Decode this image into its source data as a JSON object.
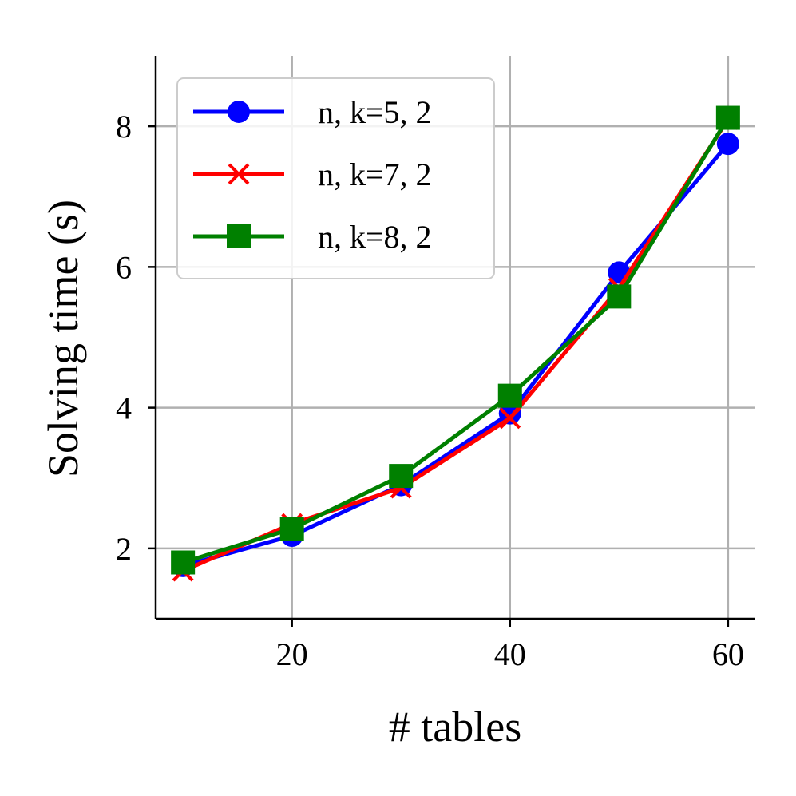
{
  "chart_data": {
    "type": "line",
    "title": "",
    "xlabel": "# tables",
    "ylabel": "Solving time (s)",
    "xlim": [
      7.5,
      62.5
    ],
    "ylim": [
      1.0,
      9.0
    ],
    "xticks": [
      20,
      40,
      60
    ],
    "yticks": [
      2,
      4,
      6,
      8
    ],
    "grid": true,
    "legend_position": "top-left",
    "x": [
      10,
      20,
      30,
      40,
      50,
      60
    ],
    "series": [
      {
        "name": "n, k=5, 2",
        "color": "#0000ff",
        "marker": "circle",
        "values": [
          1.75,
          2.18,
          2.9,
          3.92,
          5.92,
          7.75
        ]
      },
      {
        "name": "n, k=7, 2",
        "color": "#ff0000",
        "marker": "x",
        "values": [
          1.68,
          2.35,
          2.86,
          3.85,
          5.7,
          8.1
        ]
      },
      {
        "name": "n, k=8, 2",
        "color": "#008000",
        "marker": "square",
        "values": [
          1.8,
          2.28,
          3.03,
          4.17,
          5.58,
          8.12
        ]
      }
    ]
  }
}
